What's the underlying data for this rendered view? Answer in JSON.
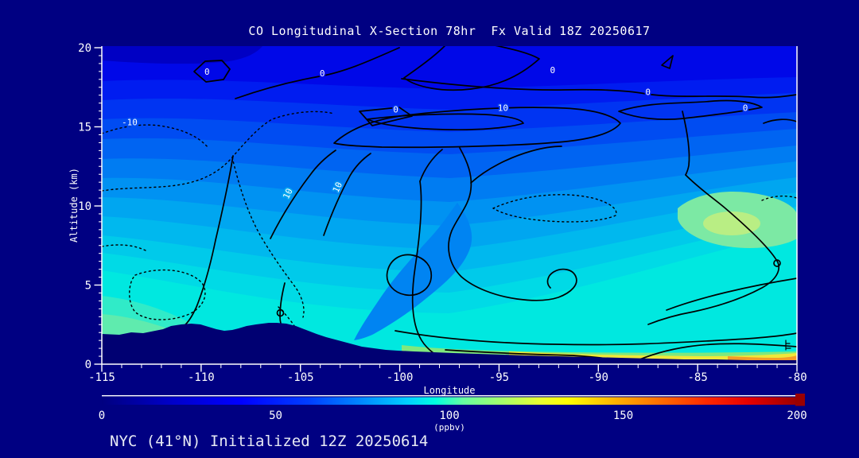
{
  "header": {
    "title": "CO Longitudinal X-Section 78hr  Fx Valid 18Z 20250617"
  },
  "footer": {
    "label": "NYC (41°N) Initialized 12Z 20250614"
  },
  "colors": {
    "background": "#000082",
    "terrain": "#000072",
    "axis": "#FFFFFF",
    "contour_line": "#000000",
    "title_text": "#FFFFFF",
    "footer_text": "#E7EAF4"
  },
  "chart_data": {
    "type": "heatmap",
    "subtype": "filled-contour-cross-section",
    "title": "CO Longitudinal X-Section 78hr  Fx Valid 18Z 20250617",
    "station": "NYC (41°N)",
    "initialized": "12Z 20250614",
    "valid": "18Z 20250617",
    "forecast_hour": "78hr",
    "x_axis": {
      "label": "Longitude",
      "range": [
        -115,
        -80
      ],
      "major_ticks": [
        -115,
        -110,
        -105,
        -100,
        -95,
        -90,
        -85,
        -80
      ],
      "minor_tick_step": 1
    },
    "y_axis": {
      "label": "Altitude (km)",
      "range": [
        0,
        20
      ],
      "major_ticks": [
        0,
        5,
        10,
        15,
        20
      ],
      "minor_tick_step": 0.5
    },
    "colorbar": {
      "label": "(ppbv)",
      "range": [
        0,
        200
      ],
      "ticks": [
        0,
        50,
        100,
        150,
        200
      ],
      "stops": [
        {
          "value": 0,
          "color": "#000080"
        },
        {
          "value": 20,
          "color": "#0000C8"
        },
        {
          "value": 40,
          "color": "#0000FF"
        },
        {
          "value": 60,
          "color": "#0040FF"
        },
        {
          "value": 76,
          "color": "#0090FF"
        },
        {
          "value": 88,
          "color": "#00D0FF"
        },
        {
          "value": 96,
          "color": "#00FFE0"
        },
        {
          "value": 104,
          "color": "#66FFA0"
        },
        {
          "value": 116,
          "color": "#AAFF66"
        },
        {
          "value": 126,
          "color": "#E8FF30"
        },
        {
          "value": 134,
          "color": "#FFFF00"
        },
        {
          "value": 148,
          "color": "#FFB000"
        },
        {
          "value": 160,
          "color": "#FF7000"
        },
        {
          "value": 174,
          "color": "#FF2800"
        },
        {
          "value": 186,
          "color": "#E60000"
        },
        {
          "value": 200,
          "color": "#990000"
        }
      ]
    },
    "contour_levels_labeled": [
      -10,
      0,
      10
    ],
    "negative_contour_style": "dotted",
    "contour_labels": [
      {
        "text": "0",
        "lon": -109.7,
        "alt": 18.3,
        "rot": 0,
        "halo": "#0008E8"
      },
      {
        "text": "0",
        "lon": -103.9,
        "alt": 18.2,
        "rot": 0,
        "halo": "#0008E8"
      },
      {
        "text": "0",
        "lon": -92.3,
        "alt": 18.4,
        "rot": 0,
        "halo": "#0008E8"
      },
      {
        "text": "0",
        "lon": -87.5,
        "alt": 17.0,
        "rot": 0,
        "halo": "#001CF0"
      },
      {
        "text": "0",
        "lon": -82.6,
        "alt": 16.0,
        "rot": 0,
        "halo": "#0034F2"
      },
      {
        "text": "10",
        "lon": -94.8,
        "alt": 16.0,
        "rot": 0,
        "halo": "#0034F2"
      },
      {
        "text": "0",
        "lon": -100.2,
        "alt": 15.9,
        "rot": 0,
        "halo": "#0034F2"
      },
      {
        "text": "10",
        "lon": -105.5,
        "alt": 10.7,
        "rot": -65,
        "halo": "#00A6F0"
      },
      {
        "text": "10",
        "lon": -103.0,
        "alt": 11.1,
        "rot": -65,
        "halo": "#0092F2"
      },
      {
        "text": "-10",
        "lon": -113.6,
        "alt": 15.1,
        "rot": 0,
        "halo": "#004CF2"
      }
    ],
    "terrain_profile_km": [
      [
        -115,
        1.9
      ],
      [
        -113,
        2.0
      ],
      [
        -111.5,
        2.3
      ],
      [
        -110.7,
        2.56
      ],
      [
        -109.5,
        2.4
      ],
      [
        -108.6,
        2.2
      ],
      [
        -107.8,
        2.4
      ],
      [
        -106.9,
        2.6
      ],
      [
        -105.9,
        2.6
      ],
      [
        -105,
        2.4
      ],
      [
        -103.9,
        1.9
      ],
      [
        -102.5,
        1.4
      ],
      [
        -101,
        1.0
      ],
      [
        -100,
        0.85
      ],
      [
        -98,
        0.75
      ],
      [
        -96,
        0.65
      ],
      [
        -94,
        0.55
      ],
      [
        -92,
        0.5
      ],
      [
        -90,
        0.4
      ],
      [
        -88,
        0.35
      ],
      [
        -86,
        0.3
      ],
      [
        -84,
        0.28
      ],
      [
        -82,
        0.26
      ],
      [
        -80,
        0.25
      ]
    ]
  }
}
